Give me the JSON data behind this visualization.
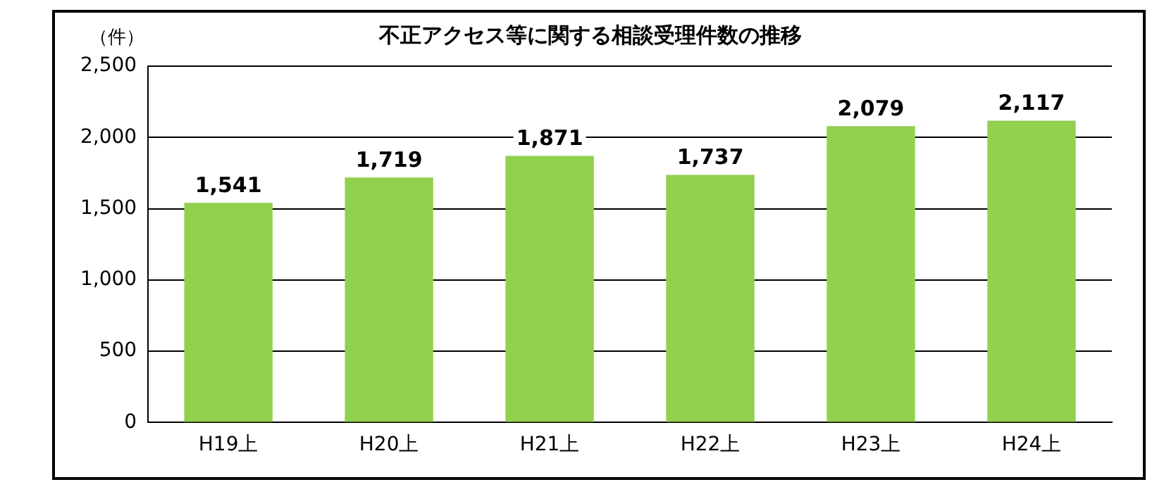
{
  "chart_data": {
    "type": "bar",
    "title": "不正アクセス等に関する相談受理件数の推移",
    "ylabel": "（件）",
    "categories": [
      "H19上",
      "H20上",
      "H21上",
      "H22上",
      "H23上",
      "H24上"
    ],
    "values": [
      1541,
      1719,
      1871,
      1737,
      2079,
      2117
    ],
    "value_labels": [
      "1,541",
      "1,719",
      "1,871",
      "1,737",
      "2,079",
      "2,117"
    ],
    "color": "#92d050",
    "ylim": [
      0,
      2500
    ],
    "yticks": [
      0,
      500,
      {
        "value": 1000,
        "label": "1,000"
      },
      {
        "value": 1500,
        "label": "1,500"
      },
      {
        "value": 2000,
        "label": "2,000"
      },
      {
        "value": 2500,
        "label": "2,500"
      }
    ],
    "grid": "y",
    "data_labels": true
  }
}
